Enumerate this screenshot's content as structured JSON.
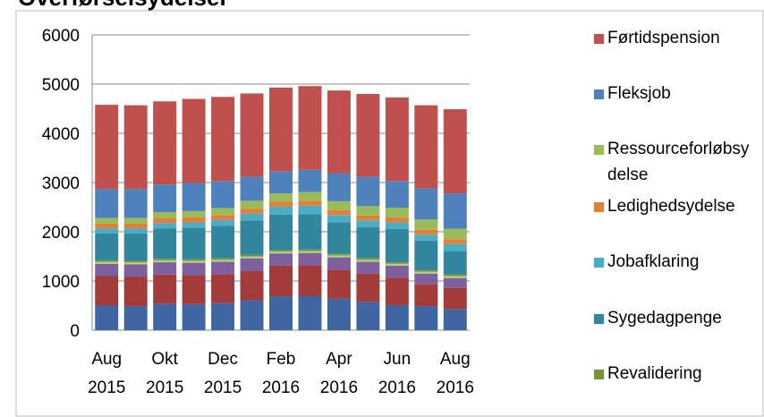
{
  "chart_data": {
    "type": "bar",
    "stacked": true,
    "title": "Overførselsydelser",
    "categories": [
      "Aug 2015",
      null,
      "Okt 2015",
      null,
      "Dec 2015",
      null,
      "Feb 2016",
      null,
      "Apr 2016",
      null,
      "Jun 2016",
      null,
      "Aug 2016"
    ],
    "ylim": [
      0,
      6000
    ],
    "yticks": [
      0,
      1000,
      2000,
      3000,
      4000,
      5000,
      6000
    ],
    "grid": true,
    "series": [
      {
        "color": "#3f66a3",
        "values": [
          500,
          490,
          540,
          530,
          550,
          610,
          690,
          700,
          640,
          580,
          510,
          490,
          430
        ]
      },
      {
        "color": "#a23b3a",
        "values": [
          600,
          600,
          590,
          590,
          590,
          590,
          620,
          620,
          590,
          570,
          560,
          450,
          430
        ]
      },
      {
        "color": "#7e5fa0",
        "values": [
          250,
          250,
          250,
          250,
          250,
          260,
          250,
          250,
          250,
          240,
          240,
          210,
          200
        ]
      },
      {
        "color": "#b5cf7a",
        "values": [
          40,
          40,
          40,
          40,
          40,
          40,
          40,
          40,
          40,
          40,
          40,
          40,
          40
        ]
      },
      {
        "name": "Revalidering",
        "color": "#77933c",
        "values": [
          30,
          30,
          30,
          30,
          30,
          30,
          30,
          30,
          30,
          30,
          30,
          30,
          30
        ]
      },
      {
        "name": "Sygedagpenge",
        "color": "#31859c",
        "values": [
          550,
          560,
          620,
          640,
          660,
          700,
          720,
          720,
          640,
          630,
          680,
          600,
          470
        ]
      },
      {
        "name": "Jobafklaring",
        "color": "#4bacc6",
        "values": [
          100,
          100,
          110,
          110,
          120,
          140,
          160,
          170,
          150,
          140,
          130,
          120,
          150
        ]
      },
      {
        "name": "Ledighedsydelse",
        "color": "#e0803a",
        "values": [
          100,
          100,
          100,
          100,
          100,
          100,
          100,
          100,
          100,
          100,
          100,
          100,
          100
        ]
      },
      {
        "name": "Ressourceforløbsydelse",
        "color": "#9bbb59",
        "values": [
          110,
          110,
          120,
          130,
          140,
          160,
          170,
          180,
          180,
          190,
          200,
          210,
          210
        ]
      },
      {
        "name": "Fleksjob",
        "color": "#4f81bd",
        "values": [
          590,
          590,
          560,
          570,
          550,
          490,
          450,
          450,
          570,
          600,
          540,
          630,
          720
        ]
      },
      {
        "name": "Førtidspension",
        "color": "#c0504d",
        "values": [
          1710,
          1700,
          1690,
          1710,
          1710,
          1690,
          1700,
          1700,
          1680,
          1680,
          1700,
          1690,
          1710
        ]
      }
    ]
  }
}
